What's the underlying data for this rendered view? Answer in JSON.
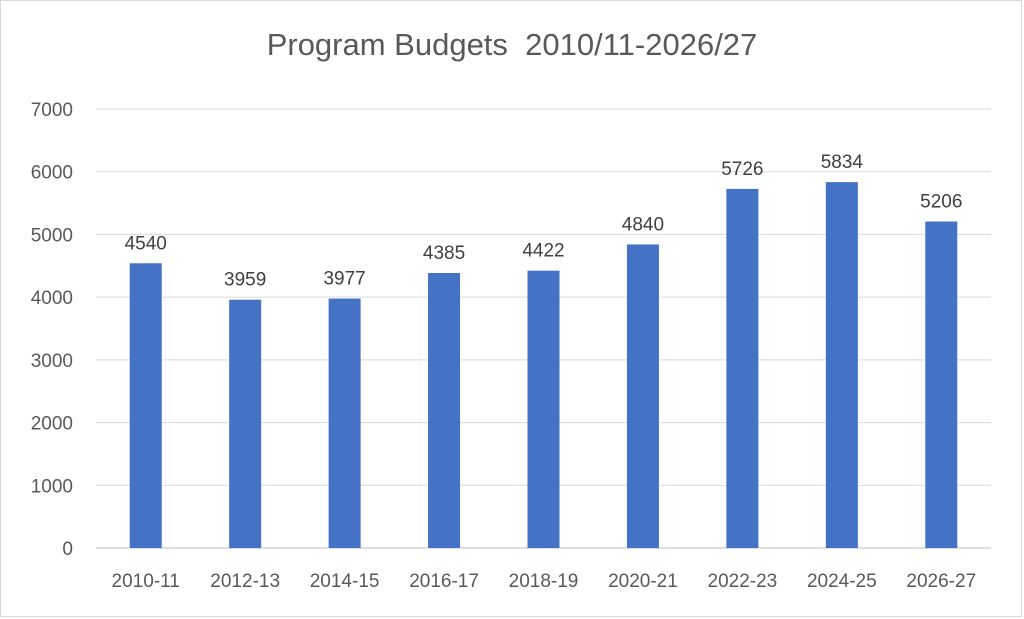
{
  "chart_data": {
    "type": "bar",
    "title": "Program Budgets  2010/11-2026/27",
    "categories": [
      "2010-11",
      "2012-13",
      "2014-15",
      "2016-17",
      "2018-19",
      "2020-21",
      "2022-23",
      "2024-25",
      "2026-27"
    ],
    "series": [
      {
        "values": [
          4540,
          3959,
          3977,
          4385,
          4422,
          4840,
          5726,
          5834,
          5206
        ],
        "color": "#4472C4"
      }
    ],
    "ylim": [
      0,
      7000
    ],
    "yticks": [
      0,
      1000,
      2000,
      3000,
      4000,
      5000,
      6000,
      7000
    ],
    "grid": true,
    "data_labels": true,
    "xlabel": "",
    "ylabel": ""
  }
}
